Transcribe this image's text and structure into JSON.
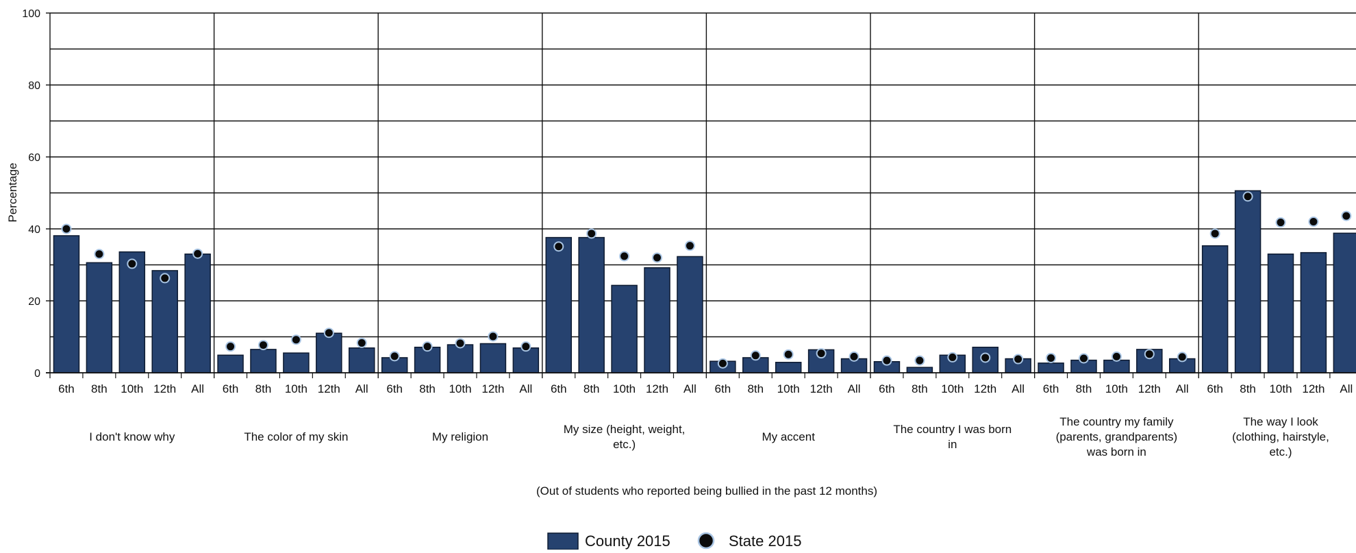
{
  "chart_data": {
    "type": "bar",
    "ylabel": "Percentage",
    "xlabel": "(Out of students who reported being bullied in the past 12 months)",
    "ylim": [
      0,
      100
    ],
    "yticks": [
      0,
      20,
      40,
      60,
      80,
      100
    ],
    "grid": true,
    "legend_position": "bottom-center",
    "colors": {
      "bar": "#26426f",
      "bar_stroke": "#0d1a30",
      "dot": "#0b0b0b",
      "dot_ring": "#a8c4e3",
      "grid": "#111111"
    },
    "subcategories": [
      "6th",
      "8th",
      "10th",
      "12th",
      "All"
    ],
    "groups": [
      {
        "label": "I don't know why",
        "county": [
          38.1,
          30.6,
          33.6,
          28.4,
          33.0
        ],
        "state": [
          40.0,
          33.0,
          30.3,
          26.3,
          33.1
        ]
      },
      {
        "label": "The color of my skin",
        "county": [
          4.9,
          6.5,
          5.5,
          11.0,
          6.9
        ],
        "state": [
          7.3,
          7.7,
          9.2,
          11.1,
          8.3
        ]
      },
      {
        "label": "My religion",
        "county": [
          4.2,
          7.1,
          7.8,
          8.1,
          6.9
        ],
        "state": [
          4.6,
          7.3,
          8.2,
          10.1,
          7.3
        ]
      },
      {
        "label": "My size (height, weight, etc.)",
        "county": [
          37.6,
          37.6,
          24.3,
          29.2,
          32.3
        ],
        "state": [
          35.1,
          38.7,
          32.4,
          32.0,
          35.3
        ]
      },
      {
        "label": "My accent",
        "county": [
          3.2,
          4.2,
          2.9,
          6.4,
          3.9
        ],
        "state": [
          2.6,
          4.8,
          5.1,
          5.4,
          4.5
        ]
      },
      {
        "label": "The country I was born in",
        "county": [
          3.1,
          1.5,
          4.9,
          7.1,
          3.9
        ],
        "state": [
          3.4,
          3.4,
          4.3,
          4.2,
          3.8
        ]
      },
      {
        "label": "The country my family (parents, grandparents) was born in",
        "county": [
          2.7,
          3.5,
          3.5,
          6.5,
          3.9
        ],
        "state": [
          4.1,
          4.0,
          4.5,
          5.2,
          4.4
        ]
      },
      {
        "label": "The way I look (clothing, hairstyle, etc.)",
        "county": [
          35.3,
          50.6,
          33.0,
          33.4,
          38.8
        ],
        "state": [
          38.7,
          49.0,
          41.8,
          42.0,
          43.6
        ]
      }
    ],
    "series": [
      {
        "name": "County 2015",
        "kind": "bar"
      },
      {
        "name": "State 2015",
        "kind": "dot"
      }
    ]
  }
}
